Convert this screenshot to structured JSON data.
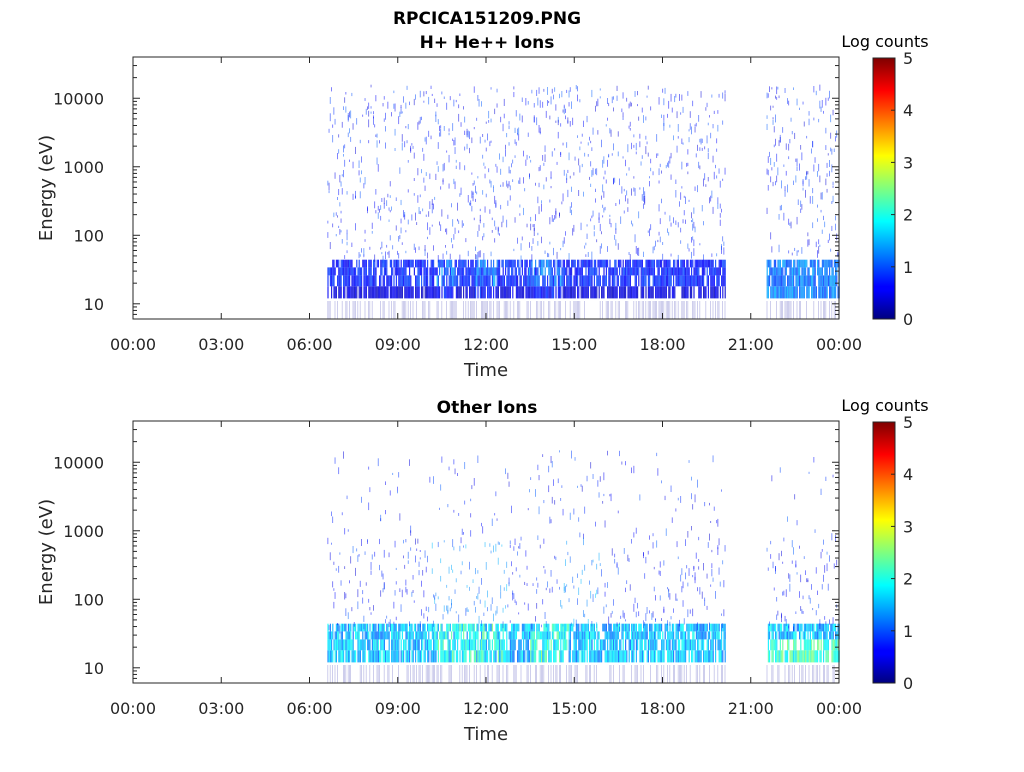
{
  "figure": {
    "file_title": "RPCICA151209.PNG"
  },
  "chart_data": [
    {
      "type": "heatmap",
      "title": "H+ He++ Ions",
      "xlabel": "Time",
      "ylabel": "Energy (eV)",
      "x_ticks": [
        "00:00",
        "03:00",
        "06:00",
        "09:00",
        "12:00",
        "15:00",
        "18:00",
        "21:00",
        "00:00"
      ],
      "x_range_hours": [
        0,
        24
      ],
      "y_scale": "log",
      "y_ticks": [
        "10",
        "100",
        "1000",
        "10000"
      ],
      "y_range": [
        6,
        40000
      ],
      "colorbar": {
        "label": "Log counts",
        "ticks": [
          "0",
          "1",
          "2",
          "3",
          "4",
          "5"
        ],
        "range": [
          0,
          5
        ],
        "colormap": "jet"
      },
      "data_gaps_hours": [
        [
          0,
          6.6
        ],
        [
          20.15,
          21.5
        ]
      ],
      "grid": false
    },
    {
      "type": "heatmap",
      "title": "Other Ions",
      "xlabel": "Time",
      "ylabel": "Energy (eV)",
      "x_ticks": [
        "00:00",
        "03:00",
        "06:00",
        "09:00",
        "12:00",
        "15:00",
        "18:00",
        "21:00",
        "00:00"
      ],
      "x_range_hours": [
        0,
        24
      ],
      "y_scale": "log",
      "y_ticks": [
        "10",
        "100",
        "1000",
        "10000"
      ],
      "y_range": [
        6,
        40000
      ],
      "colorbar": {
        "label": "Log counts",
        "ticks": [
          "0",
          "1",
          "2",
          "3",
          "4",
          "5"
        ],
        "range": [
          0,
          5
        ],
        "colormap": "jet"
      },
      "data_gaps_hours": [
        [
          0,
          6.6
        ],
        [
          20.15,
          21.5
        ]
      ],
      "grid": false
    }
  ]
}
